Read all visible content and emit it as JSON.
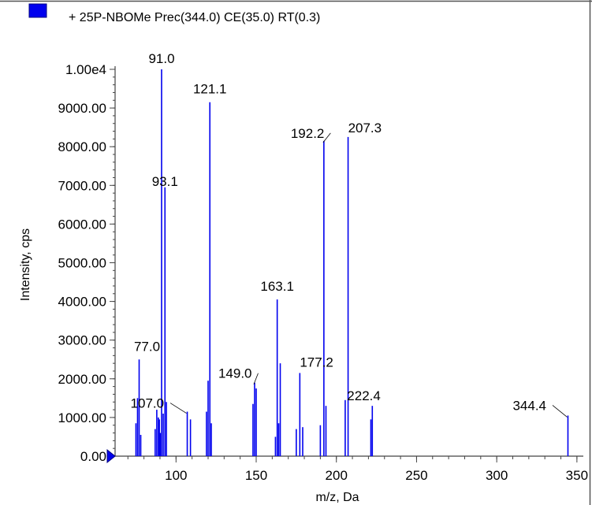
{
  "chart_data": {
    "type": "bar",
    "legend": "+ 25P-NBOMe Prec(344.0) CE(35.0) RT(0.3)",
    "xlabel": "m/z, Da",
    "ylabel": "Intensity, cps",
    "xlim": [
      62,
      354
    ],
    "ylim": [
      0,
      10000
    ],
    "x_ticks": [
      100,
      150,
      200,
      250,
      300,
      350
    ],
    "x_tick_labels": [
      "100",
      "150",
      "200",
      "250",
      "300",
      "350"
    ],
    "y_ticks": [
      0,
      1000,
      2000,
      3000,
      4000,
      5000,
      6000,
      7000,
      8000,
      9000,
      10000
    ],
    "y_tick_labels": [
      "0.00",
      "1000.00",
      "2000.00",
      "3000.00",
      "4000.00",
      "5000.00",
      "6000.00",
      "7000.00",
      "8000.00",
      "9000.00",
      "1.00e4"
    ],
    "y_minor_step": 200,
    "x_minor_step": 10,
    "color": "#0000ee",
    "peaks": [
      {
        "x": 75.0,
        "y": 850
      },
      {
        "x": 76.0,
        "y": 1500
      },
      {
        "x": 77.0,
        "y": 2500
      },
      {
        "x": 78.0,
        "y": 550
      },
      {
        "x": 87.0,
        "y": 700
      },
      {
        "x": 88.0,
        "y": 1200
      },
      {
        "x": 89.0,
        "y": 1000
      },
      {
        "x": 89.6,
        "y": 950
      },
      {
        "x": 90.2,
        "y": 600
      },
      {
        "x": 91.0,
        "y": 10000
      },
      {
        "x": 92.0,
        "y": 1100
      },
      {
        "x": 93.1,
        "y": 6950
      },
      {
        "x": 94.0,
        "y": 1400
      },
      {
        "x": 107.0,
        "y": 1150
      },
      {
        "x": 109.0,
        "y": 950
      },
      {
        "x": 119.0,
        "y": 1150
      },
      {
        "x": 120.0,
        "y": 1950
      },
      {
        "x": 121.1,
        "y": 9150
      },
      {
        "x": 122.0,
        "y": 850
      },
      {
        "x": 148.0,
        "y": 1350
      },
      {
        "x": 149.0,
        "y": 1900
      },
      {
        "x": 150.0,
        "y": 1750
      },
      {
        "x": 162.0,
        "y": 500
      },
      {
        "x": 163.1,
        "y": 4050
      },
      {
        "x": 164.0,
        "y": 850
      },
      {
        "x": 165.0,
        "y": 2400
      },
      {
        "x": 175.0,
        "y": 700
      },
      {
        "x": 177.2,
        "y": 2150
      },
      {
        "x": 179.0,
        "y": 750
      },
      {
        "x": 190.0,
        "y": 800
      },
      {
        "x": 192.2,
        "y": 8150
      },
      {
        "x": 193.5,
        "y": 1300
      },
      {
        "x": 205.5,
        "y": 1450
      },
      {
        "x": 207.3,
        "y": 8250
      },
      {
        "x": 221.5,
        "y": 950
      },
      {
        "x": 222.4,
        "y": 1300
      },
      {
        "x": 344.4,
        "y": 1050
      }
    ],
    "labels": [
      {
        "text": "91.0",
        "x": 91.0,
        "y": 10000
      },
      {
        "text": "121.1",
        "x": 121.1,
        "y": 9150
      },
      {
        "text": "192.2",
        "x": 192.2,
        "y": 8150
      },
      {
        "text": "207.3",
        "x": 207.3,
        "y": 8250
      },
      {
        "text": "93.1",
        "x": 93.1,
        "y": 6950
      },
      {
        "text": "163.1",
        "x": 163.1,
        "y": 4050
      },
      {
        "text": "77.0",
        "x": 77.0,
        "y": 2500
      },
      {
        "text": "149.0",
        "x": 149.0,
        "y": 1900
      },
      {
        "text": "177.2",
        "x": 177.2,
        "y": 2150
      },
      {
        "text": "107.0",
        "x": 107.0,
        "y": 1150
      },
      {
        "text": "222.4",
        "x": 222.4,
        "y": 1300
      },
      {
        "text": "344.4",
        "x": 344.4,
        "y": 1050
      }
    ]
  }
}
